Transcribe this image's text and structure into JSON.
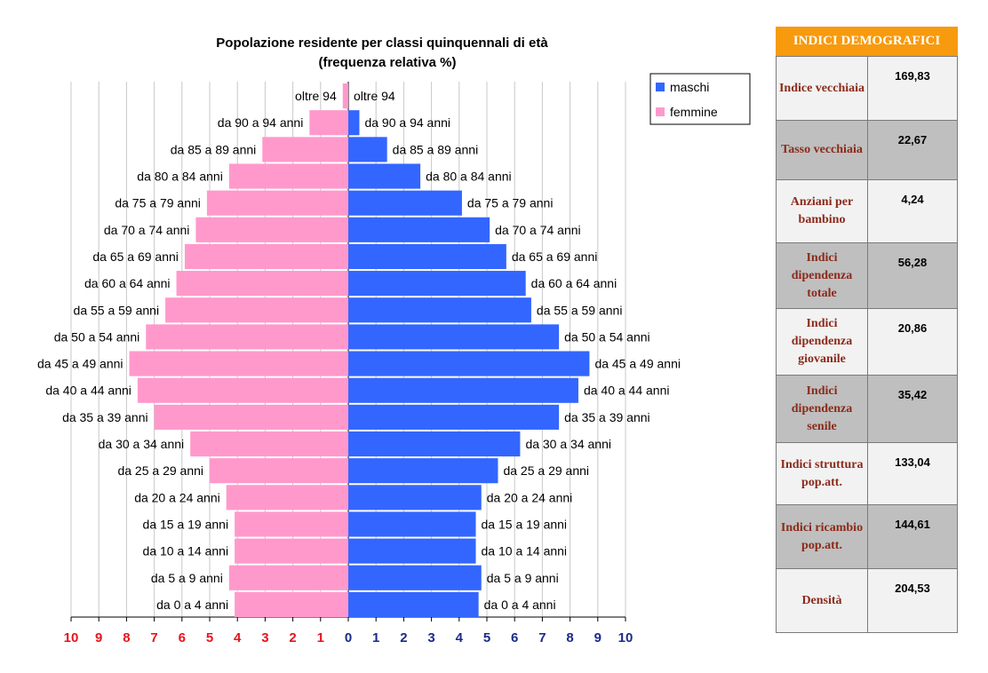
{
  "chart_data": {
    "type": "bar",
    "title_line1": "Popolazione residente per classi quinquennali di età",
    "title_line2": "(frequenza  relativa %)",
    "categories": [
      "oltre 94",
      "da 90 a 94 anni",
      "da 85 a 89 anni",
      "da 80 a 84 anni",
      "da 75 a 79 anni",
      "da 70 a 74 anni",
      "da 65 a 69 anni",
      "da 60 a 64 anni",
      "da 55 a 59 anni",
      "da 50 a 54 anni",
      "da 45 a 49 anni",
      "da 40 a 44 anni",
      "da 35 a 39 anni",
      "da 30 a 34 anni",
      "da 25 a 29 anni",
      "da 20 a 24 anni",
      "da 15 a 19 anni",
      "da 10 a 14 anni",
      "da 5 a 9 anni",
      "da 0 a 4 anni"
    ],
    "series": [
      {
        "name": "maschi",
        "color": "#3366ff",
        "values": [
          0.0,
          0.4,
          1.4,
          2.6,
          4.1,
          5.1,
          5.7,
          6.4,
          6.6,
          7.6,
          8.7,
          8.3,
          7.6,
          6.2,
          5.4,
          4.8,
          4.6,
          4.6,
          4.8,
          4.7
        ]
      },
      {
        "name": "femmine",
        "color": "#ff99cc",
        "values": [
          0.2,
          1.4,
          3.1,
          4.3,
          5.1,
          5.5,
          5.9,
          6.2,
          6.6,
          7.3,
          7.9,
          7.6,
          7.0,
          5.7,
          5.0,
          4.4,
          4.1,
          4.1,
          4.3,
          4.1
        ]
      }
    ],
    "xlim": [
      0,
      10
    ],
    "left_ticks": [
      "10",
      "9",
      "8",
      "7",
      "6",
      "5",
      "4",
      "3",
      "2",
      "1"
    ],
    "right_ticks": [
      "0",
      "1",
      "2",
      "3",
      "4",
      "5",
      "6",
      "7",
      "8",
      "9",
      "10"
    ],
    "left_tick_color": "#e8141c",
    "right_tick_color": "#1a2a8a",
    "legend": [
      "maschi",
      "femmine"
    ]
  },
  "indices": {
    "header": "INDICI DEMOGRAFICI",
    "rows": [
      {
        "name": "Indice vecchiaia",
        "value": "169,83"
      },
      {
        "name": "Tasso vecchiaia",
        "value": "22,67"
      },
      {
        "name": "Anziani per bambino",
        "value": "4,24"
      },
      {
        "name": "Indici dipendenza totale",
        "value": "56,28"
      },
      {
        "name": "Indici dipendenza giovanile",
        "value": "20,86"
      },
      {
        "name": "Indici dipendenza senile",
        "value": "35,42"
      },
      {
        "name": "Indici struttura pop.att.",
        "value": "133,04"
      },
      {
        "name": "Indici ricambio pop.att.",
        "value": "144,61"
      },
      {
        "name": "Densità",
        "value": "204,53"
      }
    ]
  }
}
